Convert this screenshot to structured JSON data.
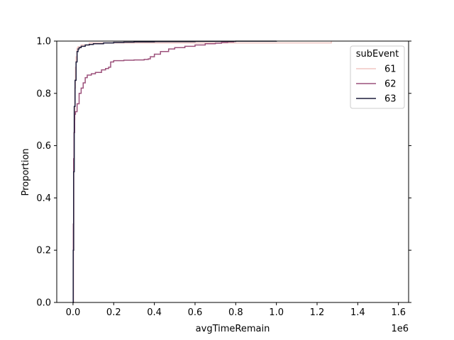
{
  "chart_data": {
    "type": "line",
    "subtype": "ecdf",
    "xlabel": "avgTimeRemain",
    "ylabel": "Proportion",
    "x_offset_label": "1e6",
    "x_scale": 1000000,
    "xlim": [
      -80000,
      1650000
    ],
    "ylim": [
      0.0,
      1.0
    ],
    "x_ticks": [
      0,
      200000,
      400000,
      600000,
      800000,
      1000000,
      1200000,
      1400000,
      1600000
    ],
    "x_tick_labels": [
      "0.0",
      "0.2",
      "0.4",
      "0.6",
      "0.8",
      "1.0",
      "1.2",
      "1.4",
      "1.6"
    ],
    "y_ticks": [
      0.0,
      0.2,
      0.4,
      0.6,
      0.8,
      1.0
    ],
    "y_tick_labels": [
      "0.0",
      "0.2",
      "0.4",
      "0.6",
      "0.8",
      "1.0"
    ],
    "grid": false,
    "legend": {
      "title": "subEvent",
      "placement": "top-right"
    },
    "series": [
      {
        "name": "61",
        "color": "#f1c6c2",
        "x": [
          0,
          2000,
          4000,
          6000,
          9000,
          12000,
          15000,
          19000,
          22000,
          25000,
          40000,
          80000,
          1270000
        ],
        "y": [
          0.0,
          0.2,
          0.5,
          0.7,
          0.82,
          0.9,
          0.94,
          0.97,
          0.975,
          0.978,
          0.985,
          0.993,
          1.0
        ]
      },
      {
        "name": "62",
        "color": "#9c517b",
        "x": [
          0,
          1500,
          3000,
          5000,
          8000,
          12000,
          20000,
          30000,
          40000,
          50000,
          60000,
          70000,
          90000,
          110000,
          140000,
          160000,
          175000,
          185000,
          200000,
          250000,
          300000,
          350000,
          370000,
          380000,
          400000,
          430000,
          470000,
          500000,
          550000,
          600000,
          650000,
          700000,
          730000,
          760000,
          790000,
          800000
        ],
        "y": [
          0.0,
          0.3,
          0.55,
          0.65,
          0.72,
          0.73,
          0.76,
          0.8,
          0.82,
          0.84,
          0.86,
          0.87,
          0.875,
          0.88,
          0.89,
          0.895,
          0.9,
          0.92,
          0.925,
          0.927,
          0.928,
          0.93,
          0.932,
          0.94,
          0.95,
          0.96,
          0.97,
          0.975,
          0.98,
          0.985,
          0.99,
          0.992,
          0.995,
          0.997,
          0.999,
          1.0
        ]
      },
      {
        "name": "63",
        "color": "#1d1d3b",
        "x": [
          0,
          1000,
          3000,
          6000,
          10000,
          15000,
          20000,
          25000,
          30000,
          40000,
          60000,
          80000,
          100000,
          150000,
          200000,
          250000,
          300000,
          400000,
          600000,
          800000,
          1000000
        ],
        "y": [
          0.0,
          0.2,
          0.5,
          0.75,
          0.85,
          0.92,
          0.96,
          0.97,
          0.975,
          0.98,
          0.985,
          0.987,
          0.99,
          0.993,
          0.995,
          0.996,
          0.997,
          0.998,
          0.999,
          0.9995,
          1.0
        ]
      }
    ]
  }
}
